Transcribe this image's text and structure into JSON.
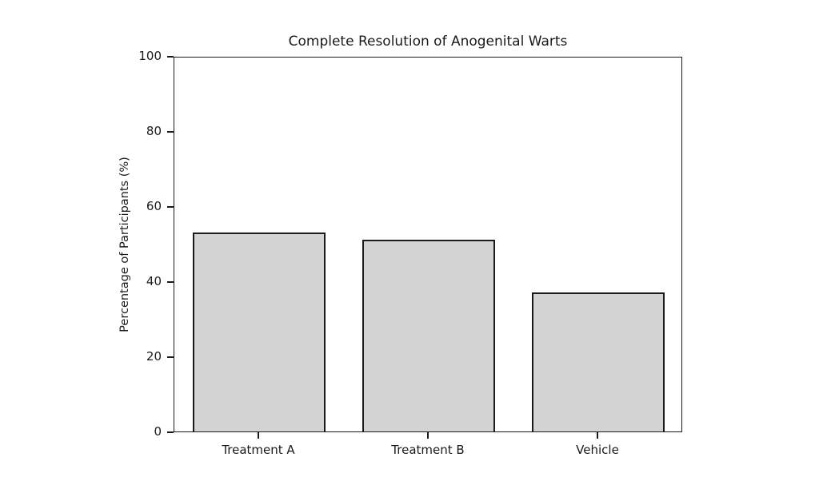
{
  "chart_data": {
    "type": "bar",
    "title": "Complete Resolution of Anogenital Warts",
    "xlabel": "",
    "ylabel": "Percentage of Participants (%)",
    "categories": [
      "Treatment A",
      "Treatment B",
      "Vehicle"
    ],
    "values": [
      53,
      51,
      37
    ],
    "ylim": [
      0,
      100
    ],
    "yticks": [
      0,
      20,
      40,
      60,
      80,
      100
    ],
    "grid": false,
    "legend_position": "none",
    "bar_fill_color": "#d3d3d3",
    "bar_edge_color": "#1a1a1a",
    "bar_width_fraction": 0.78,
    "axis_color": "#1a1a1a",
    "background_color": "#ffffff"
  }
}
